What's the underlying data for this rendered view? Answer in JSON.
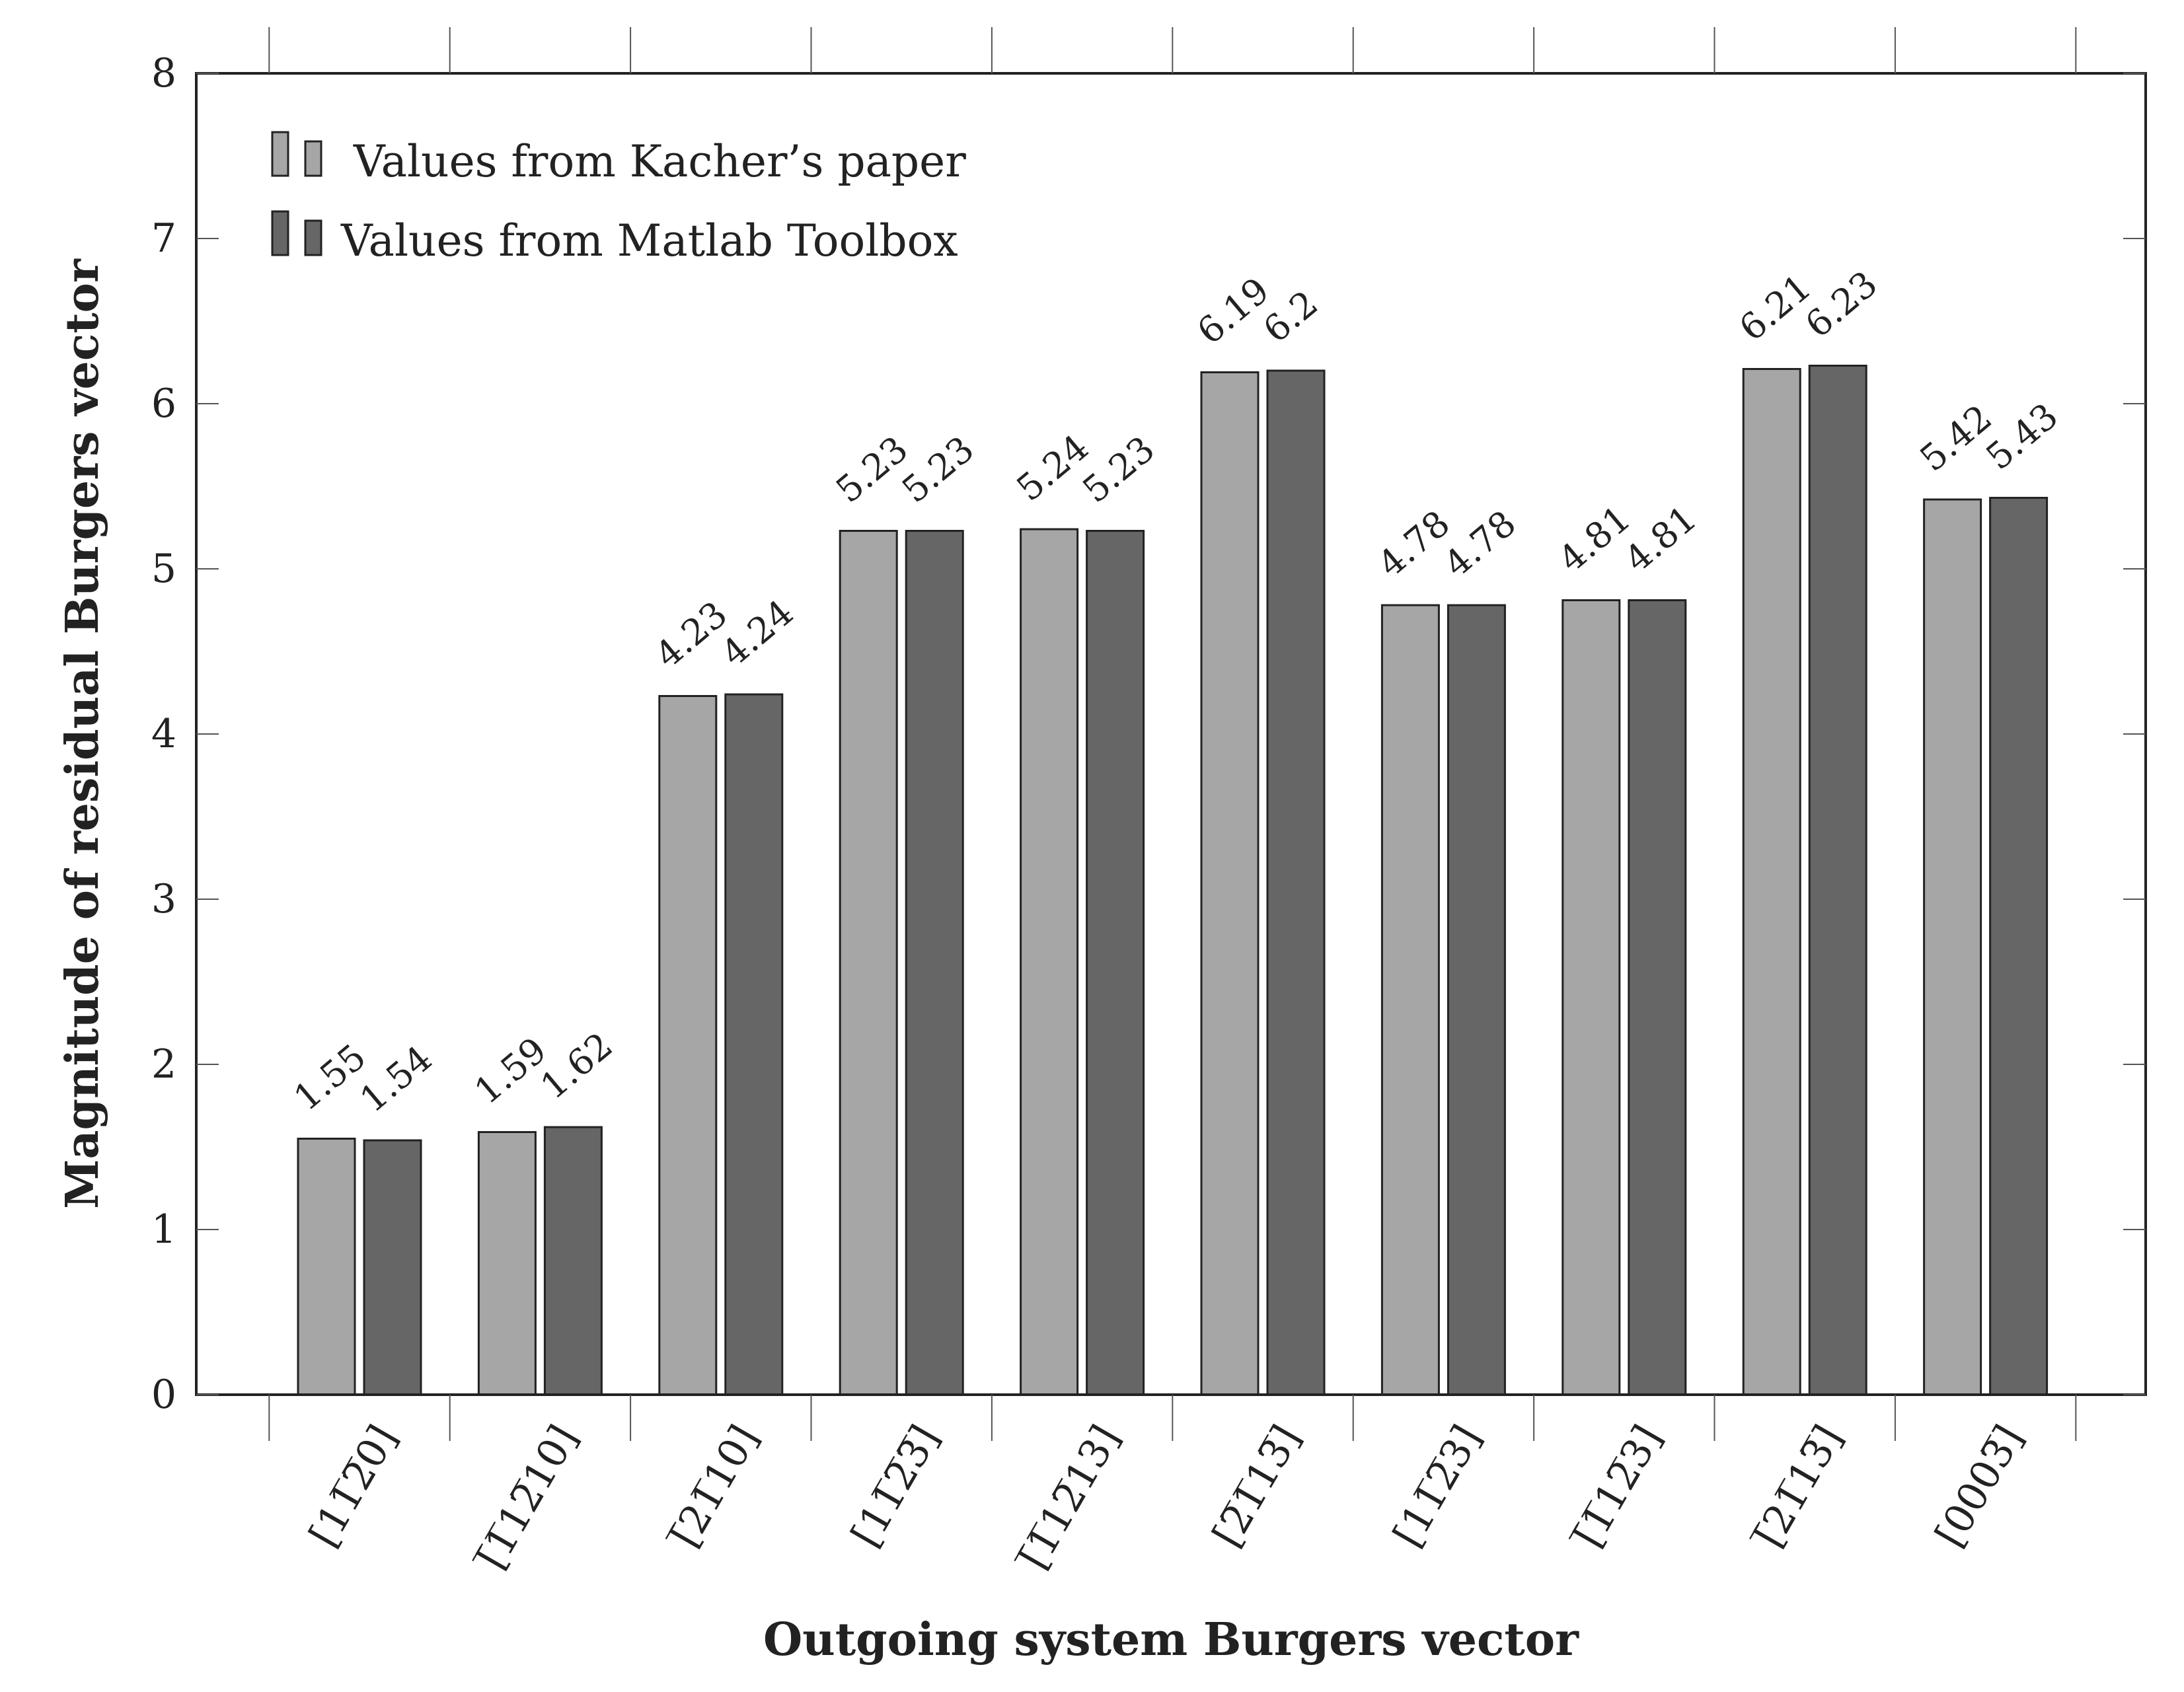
{
  "chart_data": {
    "type": "bar",
    "categories": [
      "[11̅2̅0]",
      "[̅1̅12̅10]",
      "[̅21̅10]",
      "[11̅2̅3̅]",
      "[̅1̅12̅13]",
      "[2̅1̅13̅]",
      "[11̅2̅3]",
      "[̅1̅12̅3]",
      "[̅21̅13̅]",
      "[0003̅]"
    ],
    "categories_plain": [
      "[11-20]",
      "[-12-10]",
      "[-2110]",
      "[11-2-3]",
      "[-12-13]",
      "[2-1-1-3]",
      "[11-23]",
      "[-12-13]",
      "[-2113]",
      "[000-3]"
    ],
    "series": [
      {
        "name": "Values from Kacher’s paper",
        "values": [
          1.55,
          1.59,
          4.23,
          5.23,
          5.24,
          6.19,
          4.78,
          4.81,
          6.21,
          5.42
        ],
        "color": "#a6a6a6"
      },
      {
        "name": "Values from Matlab Toolbox",
        "values": [
          1.54,
          1.62,
          4.24,
          5.23,
          5.23,
          6.2,
          4.78,
          4.81,
          6.23,
          5.43
        ],
        "color": "#666666"
      }
    ],
    "value_labels": [
      [
        "1.55",
        "1.59",
        "4.23",
        "5.23",
        "5.24",
        "6.19",
        "4.78",
        "4.81",
        "6.21",
        "5.42"
      ],
      [
        "1.54",
        "1.62",
        "4.24",
        "5.23",
        "5.23",
        "6.2",
        "4.78",
        "4.81",
        "6.23",
        "5.43"
      ]
    ],
    "title": "",
    "xlabel": "Outgoing system Burgers vector",
    "ylabel": "Magnitude of residual Burgers vector",
    "ylim": [
      0,
      8
    ],
    "yticks": [
      "0",
      "1",
      "2",
      "3",
      "4",
      "5",
      "6",
      "7",
      "8"
    ],
    "grid": false,
    "legend_position": "top-left"
  }
}
